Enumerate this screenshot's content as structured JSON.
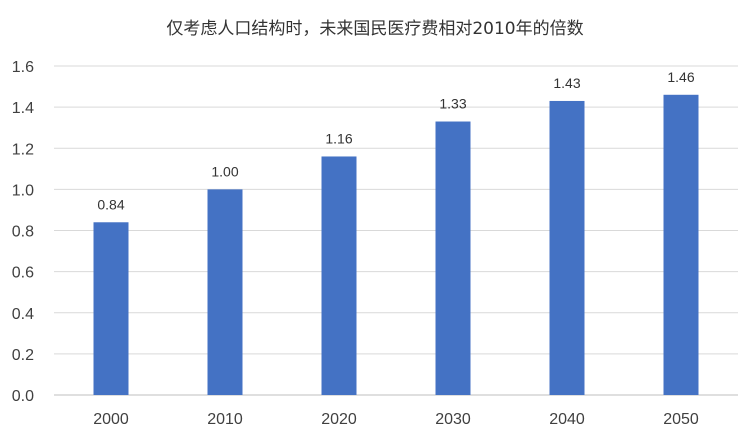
{
  "chart_data": {
    "type": "bar",
    "title": "仅考虑人口结构时，未来国民医疗费相对2010年的倍数",
    "categories": [
      "2000",
      "2010",
      "2020",
      "2030",
      "2040",
      "2050"
    ],
    "values": [
      0.84,
      1.0,
      1.16,
      1.33,
      1.43,
      1.46
    ],
    "value_labels": [
      "0.84",
      "1.00",
      "1.16",
      "1.33",
      "1.43",
      "1.46"
    ],
    "ylim": [
      0,
      1.6
    ],
    "yticks": [
      "0.0",
      "0.2",
      "0.4",
      "0.6",
      "0.8",
      "1.0",
      "1.2",
      "1.4",
      "1.6"
    ],
    "xlabel": "",
    "ylabel": "",
    "grid": true,
    "bar_color": "#4472C4",
    "grid_color": "#D9D9D9"
  }
}
